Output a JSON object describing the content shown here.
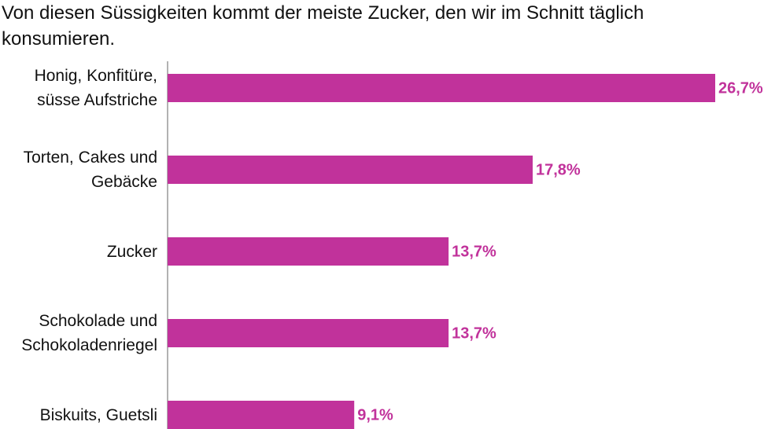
{
  "chart_data": {
    "type": "bar",
    "orientation": "horizontal",
    "title": "Von diesen Süssigkeiten kommt der meiste Zucker, den wir im Schnitt täglich konsumieren.",
    "categories": [
      "Honig, Konfitüre, süsse Aufstriche",
      "Torten, Cakes und Gebäcke",
      "Zucker",
      "Schokolade und Schokoladenriegel",
      "Biskuits, Guetsli"
    ],
    "values": [
      26.7,
      17.8,
      13.7,
      13.7,
      9.1
    ],
    "value_labels": [
      "26,7%",
      "17,8%",
      "13,7%",
      "13,7%",
      "9,1%"
    ],
    "color": "#c1329b"
  }
}
